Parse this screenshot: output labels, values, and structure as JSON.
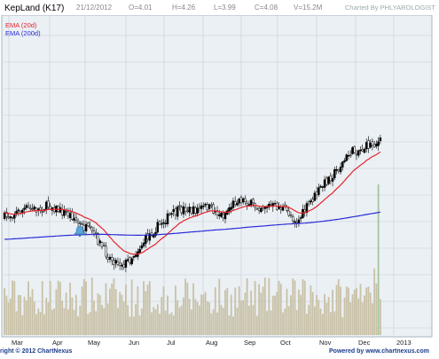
{
  "chart_data": {
    "type": "candlestick",
    "header": {
      "symbol": "KepLand (K17)",
      "date": "21/12/2012",
      "open": "O=4.01",
      "high": "H=4.26",
      "low": "L=3.99",
      "close": "C=4.08",
      "volume": "V=15.2M",
      "credit": "Charted By PHLYAROLOGIST"
    },
    "legend": [
      {
        "label": "EMA (20d)",
        "color": "#e8232b"
      },
      {
        "label": "EMA (200d)",
        "color": "#2b2bd6"
      }
    ],
    "x_tick_labels": [
      "Mar",
      "Apr",
      "May",
      "Jun",
      "Jul",
      "Aug",
      "Sep",
      "Oct",
      "Nov",
      "Dec",
      "2013"
    ],
    "footer": {
      "left": "right © 2012 ChartNexus",
      "right": "Powered by www.chartnexus.com"
    },
    "colors": {
      "background": "#ffffff",
      "plot_background": "#eaf0f4",
      "grid": "#c6ccd6",
      "candle": "#000000",
      "volume_bar": "#c9c1a6",
      "volume_bar_last": "#a6c49c",
      "ema20": "#e8232b",
      "ema200": "#2b2bd6",
      "alert_icon": "#5aa6d8",
      "footer_blue": "#1e3c8c"
    },
    "price_path_shape": [
      [
        0.0,
        0.5
      ],
      [
        0.03,
        0.47
      ],
      [
        0.06,
        0.44
      ],
      [
        0.09,
        0.45
      ],
      [
        0.12,
        0.42
      ],
      [
        0.15,
        0.46
      ],
      [
        0.18,
        0.49
      ],
      [
        0.2,
        0.55
      ],
      [
        0.22,
        0.58
      ],
      [
        0.24,
        0.62
      ],
      [
        0.26,
        0.7
      ],
      [
        0.28,
        0.77
      ],
      [
        0.3,
        0.8
      ],
      [
        0.32,
        0.81
      ],
      [
        0.34,
        0.76
      ],
      [
        0.36,
        0.7
      ],
      [
        0.38,
        0.63
      ],
      [
        0.4,
        0.58
      ],
      [
        0.42,
        0.53
      ],
      [
        0.44,
        0.49
      ],
      [
        0.46,
        0.46
      ],
      [
        0.48,
        0.44
      ],
      [
        0.5,
        0.46
      ],
      [
        0.52,
        0.44
      ],
      [
        0.54,
        0.43
      ],
      [
        0.56,
        0.46
      ],
      [
        0.58,
        0.49
      ],
      [
        0.6,
        0.43
      ],
      [
        0.62,
        0.38
      ],
      [
        0.64,
        0.39
      ],
      [
        0.66,
        0.42
      ],
      [
        0.68,
        0.43
      ],
      [
        0.7,
        0.42
      ],
      [
        0.72,
        0.43
      ],
      [
        0.74,
        0.44
      ],
      [
        0.76,
        0.48
      ],
      [
        0.77,
        0.51
      ],
      [
        0.78,
        0.53
      ],
      [
        0.8,
        0.45
      ],
      [
        0.82,
        0.38
      ],
      [
        0.84,
        0.31
      ],
      [
        0.86,
        0.25
      ],
      [
        0.88,
        0.2
      ],
      [
        0.9,
        0.14
      ],
      [
        0.92,
        0.07
      ],
      [
        0.95,
        0.05
      ],
      [
        0.97,
        0.02
      ],
      [
        1.0,
        0.0
      ]
    ]
  }
}
